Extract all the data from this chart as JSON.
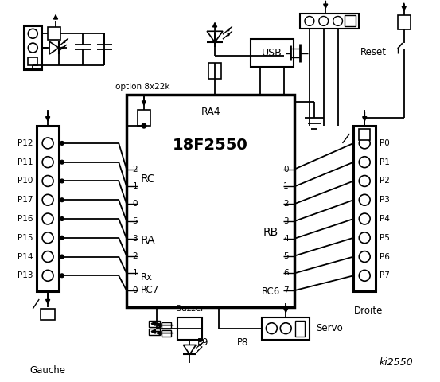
{
  "bg_color": "#ffffff",
  "line_color": "#000000",
  "chip_label": "18F2550",
  "left_connector_pins": [
    "P12",
    "P11",
    "P10",
    "P17",
    "P16",
    "P15",
    "P14",
    "P13"
  ],
  "right_connector_pins": [
    "P0",
    "P1",
    "P2",
    "P3",
    "P4",
    "P5",
    "P6",
    "P7"
  ],
  "rc_pins": [
    "2",
    "1",
    "0",
    "5",
    "3",
    "2",
    "1",
    "0"
  ],
  "rb_pins": [
    "0",
    "1",
    "2",
    "3",
    "4",
    "5",
    "6",
    "7"
  ]
}
